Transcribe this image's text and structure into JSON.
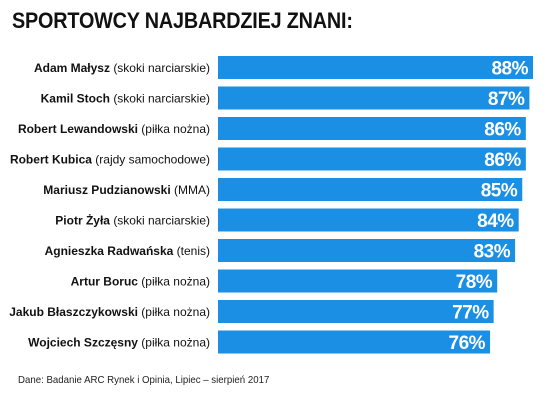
{
  "chart_data": {
    "type": "bar",
    "orientation": "horizontal",
    "title": "SPORTOWCY NAJBARDZIEJ ZNANI:",
    "categories": [
      {
        "name": "Adam Małysz",
        "detail": "(skoki narciarskie)"
      },
      {
        "name": "Kamil Stoch",
        "detail": "(skoki narciarskie)"
      },
      {
        "name": "Robert Lewandowski",
        "detail": "(piłka nożna)"
      },
      {
        "name": "Robert Kubica",
        "detail": "(rajdy samochodowe)"
      },
      {
        "name": "Mariusz Pudzianowski",
        "detail": "(MMA)"
      },
      {
        "name": "Piotr Żyła",
        "detail": "(skoki narciarskie)"
      },
      {
        "name": "Agnieszka Radwańska",
        "detail": "(tenis)"
      },
      {
        "name": "Artur Boruc",
        "detail": "(piłka nożna)"
      },
      {
        "name": "Jakub Błaszczykowski",
        "detail": "(piłka nożna)"
      },
      {
        "name": "Wojciech Szczęsny",
        "detail": "(piłka nożna)"
      }
    ],
    "values": [
      88,
      87,
      86,
      86,
      85,
      84,
      83,
      78,
      77,
      76
    ],
    "value_labels": [
      "88%",
      "87%",
      "86%",
      "86%",
      "85%",
      "84%",
      "83%",
      "78%",
      "77%",
      "76%"
    ],
    "unit": "%",
    "ylim": [
      0,
      88
    ],
    "bar_color": "#1a8fe3",
    "label_color": "#ffffff",
    "grid": false,
    "legend": "none"
  },
  "source": "Dane: Badanie ARC Rynek i Opinia, Lipiec – sierpień 2017"
}
